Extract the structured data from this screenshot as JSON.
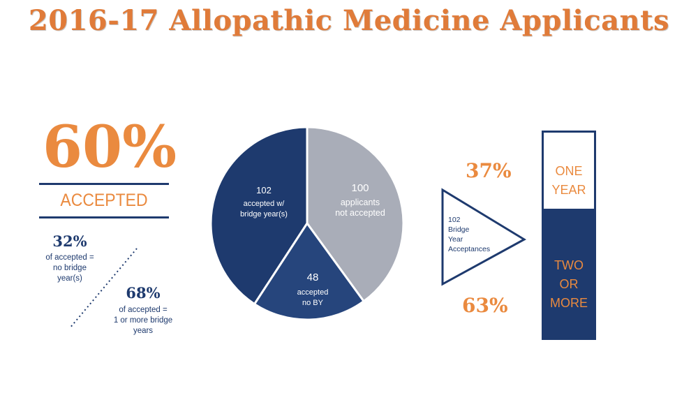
{
  "title": "2016-17 Allopathic Medicine Applicants",
  "headline": {
    "percent": "60%",
    "label": "ACCEPTED"
  },
  "left_stats": [
    {
      "percent": "32%",
      "lines": [
        "of accepted =",
        "no bridge",
        "year(s)"
      ]
    },
    {
      "percent": "68%",
      "lines": [
        "of accepted =",
        "1 or more bridge",
        "years"
      ]
    }
  ],
  "triangle": {
    "lines": [
      "102",
      "Bridge",
      "Year",
      "Acceptances"
    ]
  },
  "colors": {
    "orange": "#ea8a3f",
    "navy": "#1e3a6e",
    "blue": "#26457c",
    "gray": "#a9adb8"
  },
  "chart_data": [
    {
      "type": "pie",
      "slices": [
        {
          "value": 102,
          "lines": [
            "102",
            "accepted w/",
            "bridge year(s)"
          ],
          "color": "#1e3a6e"
        },
        {
          "value": 100,
          "lines": [
            "100",
            "applicants",
            "not accepted"
          ],
          "color": "#a9adb8"
        },
        {
          "value": 48,
          "lines": [
            "48",
            "accepted",
            "no BY"
          ],
          "color": "#26457c"
        }
      ]
    },
    {
      "type": "bar",
      "stacked": true,
      "segments": [
        {
          "percent_label": "37%",
          "value": 37,
          "lines": [
            "ONE",
            "YEAR"
          ]
        },
        {
          "percent_label": "63%",
          "value": 63,
          "lines": [
            "TWO",
            "OR",
            "MORE"
          ]
        }
      ]
    }
  ]
}
